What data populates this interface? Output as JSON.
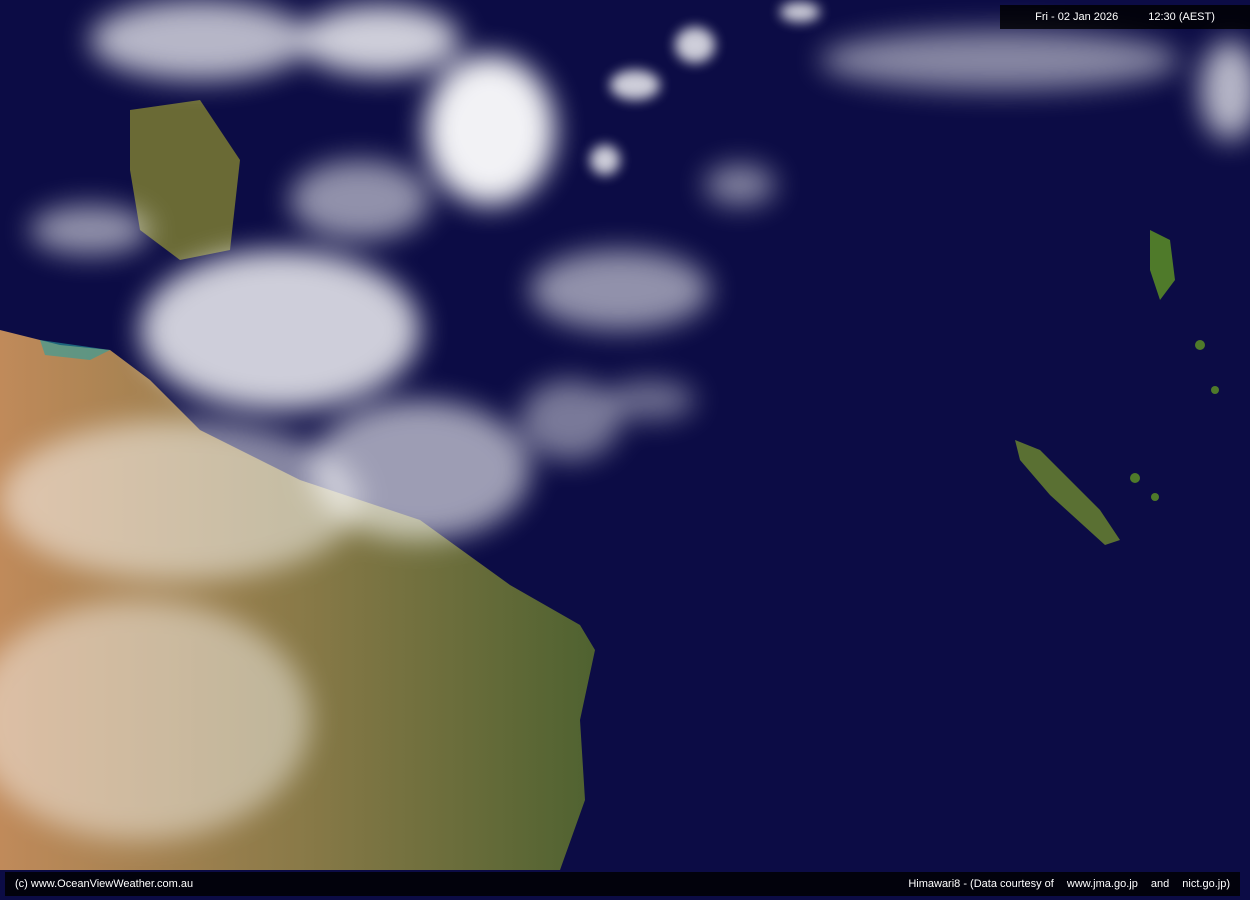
{
  "header": {
    "date": "Fri - 02 Jan 2026",
    "time": "12:30 (AEST)"
  },
  "footer": {
    "copyright": "(c) www.OceanViewWeather.com.au",
    "satellite": "Himawari8  -  (Data courtesy of",
    "source1": "www.jma.go.jp",
    "and": "and",
    "source2": "nict.go.jp)"
  },
  "colors": {
    "ocean": "#0c0c45",
    "land_arid": "#b08a5a",
    "land_green": "#5d6b34",
    "cloud": "#ffffff"
  }
}
